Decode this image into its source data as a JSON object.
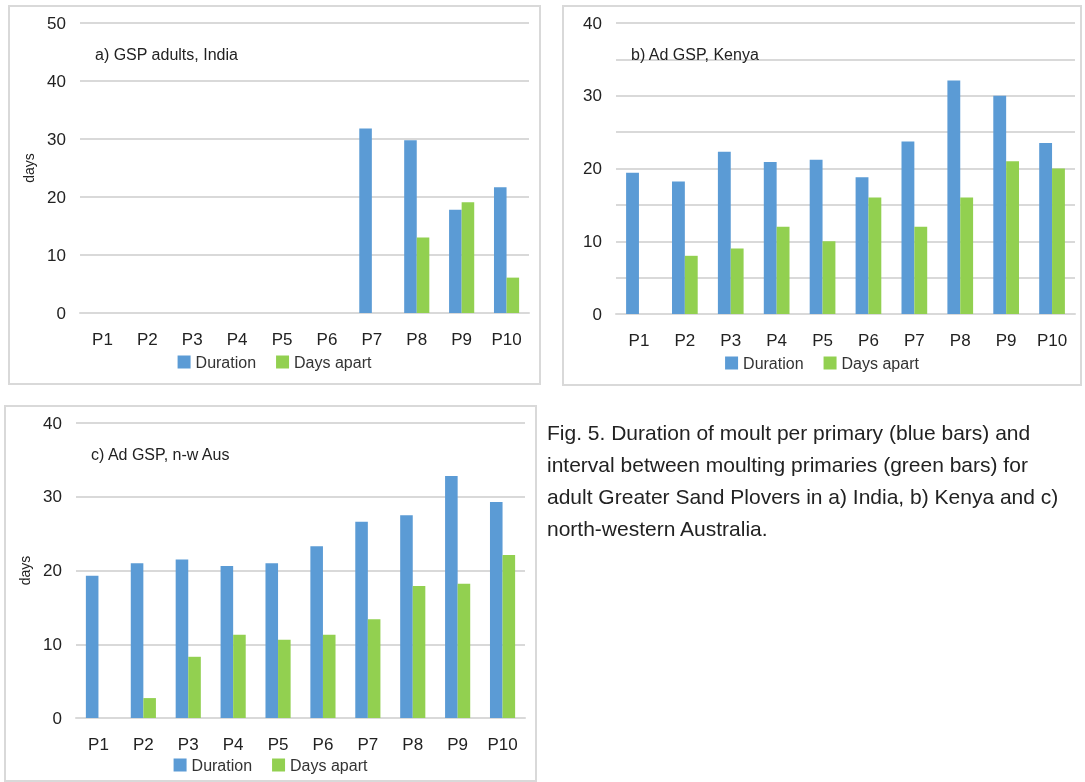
{
  "chart_data": [
    {
      "type": "bar",
      "title": "a) GSP adults, India",
      "ylabel": "days",
      "categories": [
        "P1",
        "P2",
        "P3",
        "P4",
        "P5",
        "P6",
        "P7",
        "P8",
        "P9",
        "P10"
      ],
      "series": [
        {
          "name": "Duration",
          "color": "#5b9bd5",
          "values": [
            null,
            null,
            null,
            null,
            null,
            null,
            31.8,
            29.8,
            17.8,
            21.7
          ]
        },
        {
          "name": "Days apart",
          "color": "#92d050",
          "values": [
            null,
            null,
            null,
            null,
            null,
            null,
            null,
            13,
            19.1,
            6.1
          ]
        }
      ],
      "ylim": [
        0,
        50
      ],
      "yticks": [
        0,
        10,
        20,
        30,
        40,
        50
      ],
      "grid": "y",
      "legend": "bottom"
    },
    {
      "type": "bar",
      "title": "b) Ad GSP, Kenya",
      "categories": [
        "P1",
        "P2",
        "P3",
        "P4",
        "P5",
        "P6",
        "P7",
        "P8",
        "P9",
        "P10"
      ],
      "series": [
        {
          "name": "Duration",
          "color": "#5b9bd5",
          "values": [
            19.4,
            18.2,
            22.3,
            20.9,
            21.2,
            18.8,
            23.7,
            32.1,
            30,
            23.5
          ]
        },
        {
          "name": "Days apart",
          "color": "#92d050",
          "values": [
            null,
            8,
            9,
            12,
            10,
            16,
            12,
            16,
            21,
            20
          ]
        }
      ],
      "ylim": [
        0,
        40
      ],
      "yticks": [
        0,
        {
          "value": 5,
          "label": null
        },
        10,
        {
          "value": 15,
          "label": null
        },
        20,
        {
          "value": 25,
          "label": null
        },
        30,
        {
          "value": 35,
          "label": null
        },
        40
      ],
      "grid": "y",
      "legend": "bottom"
    },
    {
      "type": "bar",
      "title": "c) Ad GSP, n-w Aus",
      "ylabel": "days",
      "categories": [
        "P1",
        "P2",
        "P3",
        "P4",
        "P5",
        "P6",
        "P7",
        "P8",
        "P9",
        "P10"
      ],
      "series": [
        {
          "name": "Duration",
          "color": "#5b9bd5",
          "values": [
            19.3,
            21,
            21.5,
            20.6,
            21,
            23.3,
            26.6,
            27.5,
            32.8,
            29.3
          ]
        },
        {
          "name": "Days apart",
          "color": "#92d050",
          "values": [
            null,
            2.7,
            8.3,
            11.3,
            10.6,
            11.3,
            13.4,
            17.9,
            18.2,
            22.1
          ]
        }
      ],
      "ylim": [
        0,
        40
      ],
      "yticks": [
        0,
        10,
        20,
        30,
        40
      ],
      "grid": "y",
      "legend": "bottom"
    },
    {
      "type": "other",
      "annotations": [
        "Fig. 5. Duration of moult per primary (blue bars) and interval between moulting primaries (green bars) for adult Greater Sand Plovers in a) India, b) Kenya and c) north-western Australia."
      ]
    }
  ]
}
